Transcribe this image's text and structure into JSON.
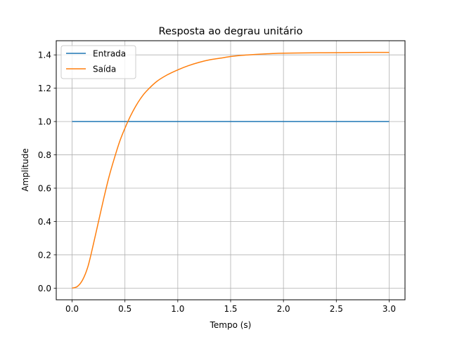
{
  "chart_data": {
    "type": "line",
    "title": "Resposta ao degrau unitário",
    "xlabel": "Tempo (s)",
    "ylabel": "Amplitude",
    "xlim": [
      -0.15,
      3.15
    ],
    "ylim": [
      -0.07,
      1.485
    ],
    "xticks": [
      0.0,
      0.5,
      1.0,
      1.5,
      2.0,
      2.5,
      3.0
    ],
    "xtick_labels": [
      "0.0",
      "0.5",
      "1.0",
      "1.5",
      "2.0",
      "2.5",
      "3.0"
    ],
    "yticks": [
      0.0,
      0.2,
      0.4,
      0.6,
      0.8,
      1.0,
      1.2,
      1.4
    ],
    "ytick_labels": [
      "0.0",
      "0.2",
      "0.4",
      "0.6",
      "0.8",
      "1.0",
      "1.2",
      "1.4"
    ],
    "grid": true,
    "legend_position": "top-left",
    "series": [
      {
        "name": "Entrada",
        "color": "#1f77b4",
        "x": [
          0.0,
          3.0
        ],
        "y": [
          1.0,
          1.0
        ]
      },
      {
        "name": "Saída",
        "color": "#ff7f0e",
        "x": [
          0.0,
          0.05,
          0.1,
          0.15,
          0.2,
          0.25,
          0.3,
          0.35,
          0.4,
          0.45,
          0.5,
          0.55,
          0.6,
          0.65,
          0.7,
          0.8,
          0.9,
          1.0,
          1.1,
          1.2,
          1.3,
          1.4,
          1.5,
          1.6,
          1.7,
          1.8,
          1.9,
          2.0,
          2.2,
          2.4,
          2.6,
          2.8,
          3.0
        ],
        "y": [
          0.0,
          0.01,
          0.05,
          0.13,
          0.26,
          0.4,
          0.54,
          0.67,
          0.78,
          0.88,
          0.96,
          1.03,
          1.09,
          1.14,
          1.18,
          1.24,
          1.28,
          1.31,
          1.335,
          1.355,
          1.37,
          1.38,
          1.39,
          1.397,
          1.401,
          1.405,
          1.408,
          1.41,
          1.412,
          1.413,
          1.414,
          1.415,
          1.415
        ]
      }
    ]
  }
}
